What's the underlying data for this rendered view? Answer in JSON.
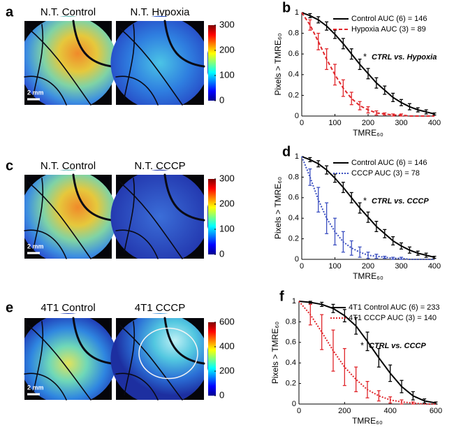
{
  "image_panels": [
    {
      "panel_label": "a",
      "titles": [
        "N.T. Control",
        "N.T. Hypoxia"
      ],
      "scale_bar": "2 mm",
      "colorbar_range": [
        0,
        300
      ],
      "colorbar_ticks": [
        0,
        100,
        200,
        300
      ]
    },
    {
      "panel_label": "c",
      "titles": [
        "N.T. Control",
        "N.T. CCCP"
      ],
      "scale_bar": "2 mm",
      "colorbar_range": [
        0,
        300
      ],
      "colorbar_ticks": [
        0,
        100,
        200,
        300
      ]
    },
    {
      "panel_label": "e",
      "titles": [
        "4T1 Control",
        "4T1 CCCP"
      ],
      "scale_bar": "2 mm",
      "colorbar_range": [
        0,
        600
      ],
      "colorbar_ticks": [
        0,
        200,
        400,
        600
      ]
    }
  ],
  "chart_data": [
    {
      "type": "line",
      "panel_label": "b",
      "x_label": "TMRE₆₀",
      "y_label": "Pixels > TMRE₆₀",
      "annotation": {
        "marker": "*",
        "text": "CTRL vs. Hypoxia"
      },
      "xlim": [
        0,
        400
      ],
      "ylim": [
        0,
        1
      ],
      "xticks": [
        0,
        100,
        200,
        300,
        400
      ],
      "yticks": [
        0,
        0.2,
        0.4,
        0.6,
        0.8,
        1
      ],
      "x": [
        0,
        25,
        50,
        75,
        100,
        125,
        150,
        175,
        200,
        225,
        250,
        275,
        300,
        325,
        350,
        375,
        400
      ],
      "series": [
        {
          "name": "Control AUC (6) = 146",
          "color": "#000000",
          "line_style": "solid",
          "values": [
            1,
            0.97,
            0.93,
            0.87,
            0.79,
            0.7,
            0.6,
            0.5,
            0.41,
            0.32,
            0.25,
            0.18,
            0.13,
            0.09,
            0.06,
            0.04,
            0.02
          ],
          "errors": [
            null,
            0.02,
            0.03,
            0.04,
            0.04,
            0.05,
            0.05,
            0.05,
            0.05,
            0.05,
            0.04,
            0.04,
            0.03,
            0.03,
            0.02,
            0.02,
            0.01
          ]
        },
        {
          "name": "Hypoxia AUC (3) = 89",
          "color": "#e0262b",
          "line_style": "dashed",
          "values": [
            1,
            0.88,
            0.72,
            0.55,
            0.4,
            0.27,
            0.17,
            0.1,
            0.06,
            0.03,
            0.02,
            0.01,
            0.01,
            0,
            0,
            0,
            0
          ],
          "errors": [
            null,
            0.05,
            0.08,
            0.1,
            0.1,
            0.08,
            0.06,
            0.04,
            0.03,
            0.02,
            0.01,
            0.01,
            0.01,
            null,
            null,
            null,
            null
          ]
        }
      ]
    },
    {
      "type": "line",
      "panel_label": "d",
      "x_label": "TMRE₆₀",
      "y_label": "Pixels > TMRE₆₀",
      "annotation": {
        "marker": "*",
        "text": "CTRL vs. CCCP"
      },
      "xlim": [
        0,
        400
      ],
      "ylim": [
        0,
        1
      ],
      "xticks": [
        0,
        100,
        200,
        300,
        400
      ],
      "yticks": [
        0,
        0.2,
        0.4,
        0.6,
        0.8,
        1
      ],
      "x": [
        0,
        25,
        50,
        75,
        100,
        125,
        150,
        175,
        200,
        225,
        250,
        275,
        300,
        325,
        350,
        375,
        400
      ],
      "series": [
        {
          "name": "Control AUC (6) = 146",
          "color": "#000000",
          "line_style": "solid",
          "values": [
            1,
            0.97,
            0.93,
            0.87,
            0.79,
            0.7,
            0.6,
            0.5,
            0.41,
            0.32,
            0.25,
            0.18,
            0.13,
            0.09,
            0.06,
            0.04,
            0.02
          ],
          "errors": [
            null,
            0.02,
            0.03,
            0.04,
            0.04,
            0.05,
            0.05,
            0.05,
            0.05,
            0.05,
            0.04,
            0.04,
            0.03,
            0.03,
            0.02,
            0.02,
            0.01
          ]
        },
        {
          "name": "CCCP AUC (3) = 78",
          "color": "#3b4fc0",
          "line_style": "dotted",
          "values": [
            1,
            0.8,
            0.58,
            0.4,
            0.27,
            0.17,
            0.11,
            0.07,
            0.04,
            0.03,
            0.02,
            0.01,
            0.01,
            0,
            0,
            0,
            0
          ],
          "errors": [
            null,
            0.08,
            0.12,
            0.15,
            0.13,
            0.1,
            0.07,
            0.05,
            0.03,
            0.02,
            0.01,
            0.01,
            0.01,
            null,
            null,
            null,
            null
          ]
        }
      ]
    },
    {
      "type": "line",
      "panel_label": "f",
      "x_label": "TMRE₆₀",
      "y_label": "Pixels > TMRE₆₀",
      "annotation": {
        "marker": "*",
        "text": "CTRL vs. CCCP"
      },
      "xlim": [
        0,
        600
      ],
      "ylim": [
        0,
        1
      ],
      "xticks": [
        0,
        200,
        400,
        600
      ],
      "yticks": [
        0,
        0.2,
        0.4,
        0.6,
        0.8,
        1
      ],
      "x": [
        0,
        50,
        100,
        150,
        200,
        250,
        300,
        350,
        400,
        450,
        500,
        550,
        600
      ],
      "series": [
        {
          "name": "4T1 Control AUC (6) = 233",
          "color": "#000000",
          "line_style": "solid",
          "values": [
            1,
            0.99,
            0.97,
            0.93,
            0.86,
            0.76,
            0.61,
            0.45,
            0.3,
            0.17,
            0.08,
            0.03,
            0.01
          ],
          "errors": [
            null,
            0.01,
            0.02,
            0.04,
            0.06,
            0.08,
            0.09,
            0.09,
            0.08,
            0.06,
            0.04,
            0.02,
            0.01
          ]
        },
        {
          "name": "4T1 CCCP AUC (3) = 140",
          "color": "#e0262b",
          "line_style": "dotted",
          "values": [
            1,
            0.87,
            0.7,
            0.52,
            0.36,
            0.24,
            0.14,
            0.08,
            0.04,
            0.02,
            0.01,
            0,
            0
          ],
          "errors": [
            null,
            0.1,
            0.17,
            0.2,
            0.18,
            0.12,
            0.08,
            0.05,
            0.03,
            0.02,
            0.01,
            null,
            null
          ]
        }
      ]
    }
  ]
}
